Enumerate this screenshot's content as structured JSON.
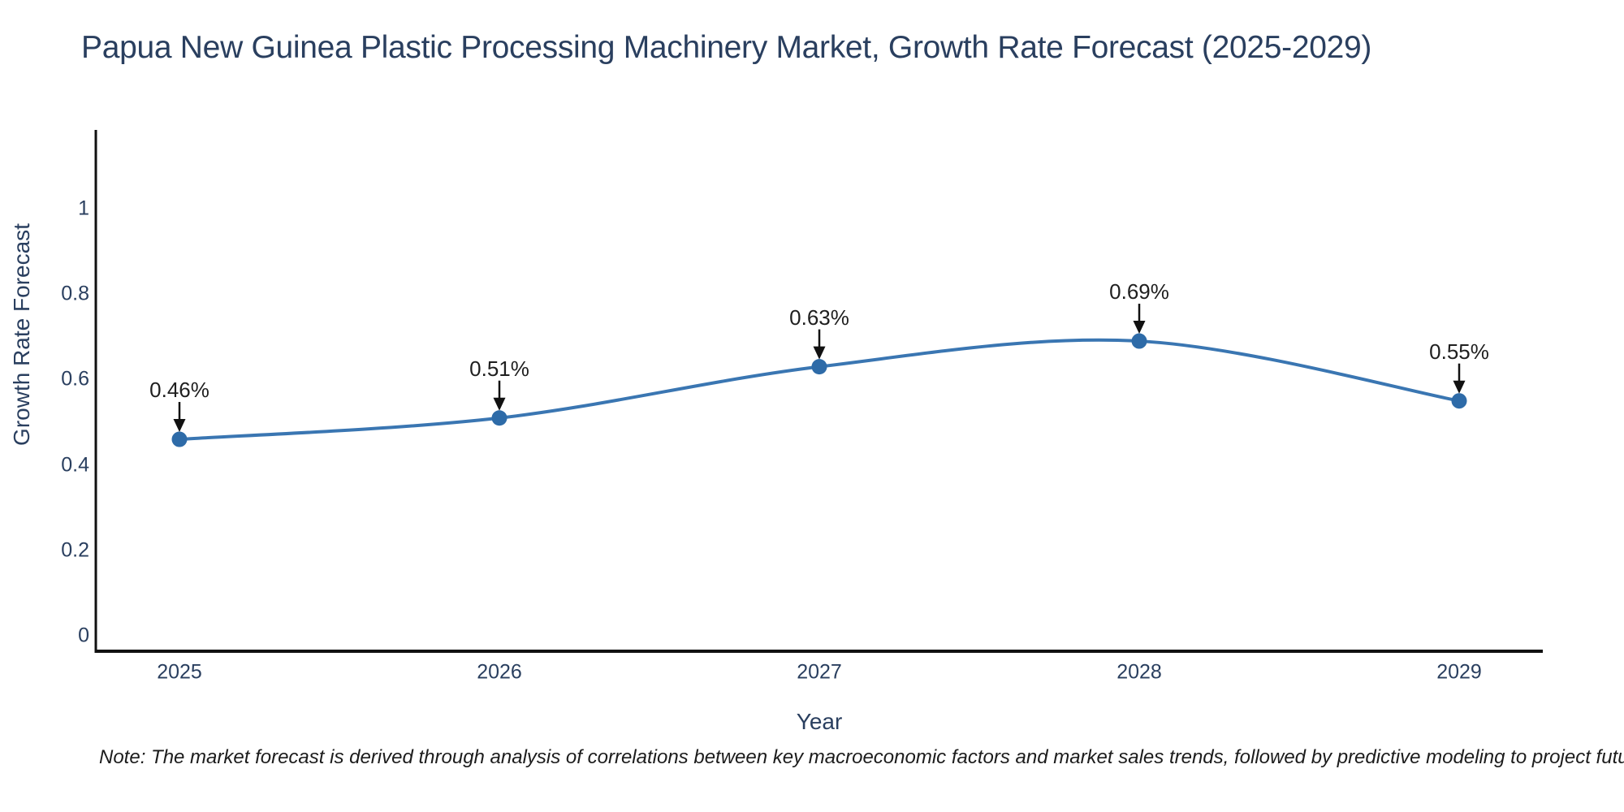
{
  "title": "Papua New Guinea Plastic Processing Machinery Market, Growth Rate Forecast (2025-2029)",
  "note": "Note: The market forecast is derived through analysis of correlations between key macroeconomic factors and market sales trends, followed by predictive modeling to project future sales",
  "chart_data": {
    "type": "line",
    "x": [
      "2025",
      "2026",
      "2027",
      "2028",
      "2029"
    ],
    "values": [
      0.46,
      0.51,
      0.63,
      0.69,
      0.55
    ],
    "point_labels": [
      "0.46%",
      "0.51%",
      "0.63%",
      "0.69%",
      "0.55%"
    ],
    "series_name": "Growth Rate Forecast",
    "title": "Papua New Guinea Plastic Processing Machinery Market, Growth Rate Forecast (2025-2029)",
    "xlabel": "Year",
    "ylabel": "Growth Rate Forecast",
    "yticks": [
      0,
      0.2,
      0.4,
      0.6,
      0.8,
      1
    ],
    "ytick_labels": [
      "0",
      "0.2",
      "0.4",
      "0.6",
      "0.8",
      "1"
    ],
    "ylim": [
      -0.04,
      1.18
    ],
    "grid": false,
    "legend": "none",
    "line_smooth": true,
    "annotations_have_arrows": true,
    "colors": {
      "line": "#3a76b2",
      "marker": "#2e6ba8",
      "axis": "#111111",
      "arrow": "#111111",
      "tick_text": "#2a3f5f",
      "annotation_text": "#1f1f1f",
      "title_text": "#2a3f5f",
      "background": "#ffffff"
    }
  }
}
